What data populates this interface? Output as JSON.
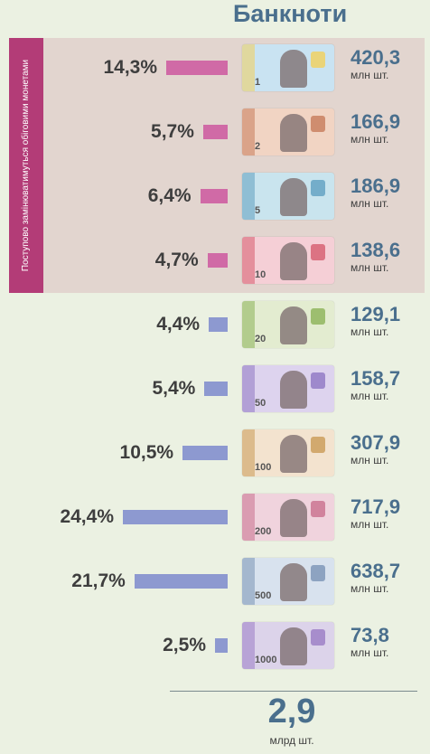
{
  "title": "Банкноти",
  "sidebar_note": "Поступово замінюватимуться обіговими монетами",
  "colors": {
    "highlight_bar": "#d06aa6",
    "regular_bar": "#8d99d0",
    "number": "#4a6f8d"
  },
  "unit_label": "млн шт.",
  "total": {
    "value": "2,9",
    "unit": "млрд шт."
  },
  "chart_data": {
    "type": "bar",
    "orientation": "horizontal",
    "title": "Банкноти",
    "unit": "млн шт.",
    "categories": [
      "1",
      "2",
      "5",
      "10",
      "20",
      "50",
      "100",
      "200",
      "500",
      "1000"
    ],
    "values": [
      420.3,
      166.9,
      186.9,
      138.6,
      129.1,
      158.7,
      307.9,
      717.9,
      638.7,
      73.8
    ],
    "value_labels": [
      "420,3",
      "166,9",
      "186,9",
      "138,6",
      "129,1",
      "158,7",
      "307,9",
      "717,9",
      "638,7",
      "73,8"
    ],
    "percentages": [
      14.3,
      5.7,
      6.4,
      4.7,
      4.4,
      5.4,
      10.5,
      24.4,
      21.7,
      2.5
    ],
    "percent_labels": [
      "14,3%",
      "5,7%",
      "6,4%",
      "4,7%",
      "4,4%",
      "5,4%",
      "10,5%",
      "24,4%",
      "21,7%",
      "2,5%"
    ],
    "highlighted": [
      true,
      true,
      true,
      true,
      false,
      false,
      false,
      false,
      false,
      false
    ]
  },
  "rows": [
    {
      "pct": "14,3%",
      "amount": "420,3",
      "denomination": "1",
      "note_color": "#c9e3f2",
      "accent": "#f2cf5a"
    },
    {
      "pct": "5,7%",
      "amount": "166,9",
      "denomination": "2",
      "note_color": "#f1d4c3",
      "accent": "#c77a5a"
    },
    {
      "pct": "6,4%",
      "amount": "186,9",
      "denomination": "5",
      "note_color": "#c9e4ee",
      "accent": "#5f9fc0"
    },
    {
      "pct": "4,7%",
      "amount": "138,6",
      "denomination": "10",
      "note_color": "#f5cfd6",
      "accent": "#d65b6e"
    },
    {
      "pct": "4,4%",
      "amount": "129,1",
      "denomination": "20",
      "note_color": "#e3ecd0",
      "accent": "#8bb356"
    },
    {
      "pct": "5,4%",
      "amount": "158,7",
      "denomination": "50",
      "note_color": "#ddd3ee",
      "accent": "#8e77c3"
    },
    {
      "pct": "10,5%",
      "amount": "307,9",
      "denomination": "100",
      "note_color": "#f3e3cf",
      "accent": "#c99a55"
    },
    {
      "pct": "24,4%",
      "amount": "717,9",
      "denomination": "200",
      "note_color": "#f0d3dd",
      "accent": "#c96f8d"
    },
    {
      "pct": "21,7%",
      "amount": "638,7",
      "denomination": "500",
      "note_color": "#d8e2ee",
      "accent": "#7a93b5"
    },
    {
      "pct": "2,5%",
      "amount": "73,8",
      "denomination": "1000",
      "note_color": "#dcd3ea",
      "accent": "#9a7cc4"
    }
  ]
}
